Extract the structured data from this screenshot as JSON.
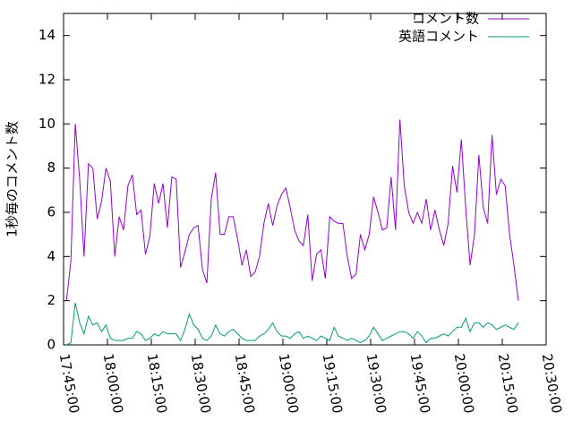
{
  "chart_data": {
    "type": "line",
    "ylabel": "1秒毎のコメント数",
    "x": [
      "17:46:00",
      "17:47:30",
      "17:49:00",
      "17:50:30",
      "17:52:00",
      "17:53:30",
      "17:55:00",
      "17:56:30",
      "17:58:00",
      "17:59:30",
      "18:01:00",
      "18:02:30",
      "18:04:00",
      "18:05:30",
      "18:07:00",
      "18:08:30",
      "18:10:00",
      "18:11:30",
      "18:13:00",
      "18:14:30",
      "18:16:00",
      "18:17:30",
      "18:19:00",
      "18:20:30",
      "18:22:00",
      "18:23:30",
      "18:25:00",
      "18:26:30",
      "18:28:00",
      "18:29:30",
      "18:31:00",
      "18:32:30",
      "18:34:00",
      "18:35:30",
      "18:37:00",
      "18:38:30",
      "18:40:00",
      "18:41:30",
      "18:43:00",
      "18:44:30",
      "18:46:00",
      "18:47:30",
      "18:49:00",
      "18:50:30",
      "18:52:00",
      "18:53:30",
      "18:55:00",
      "18:56:30",
      "18:58:00",
      "18:59:30",
      "19:01:00",
      "19:02:30",
      "19:04:00",
      "19:05:30",
      "19:07:00",
      "19:08:30",
      "19:10:00",
      "19:11:30",
      "19:13:00",
      "19:14:30",
      "19:16:00",
      "19:17:30",
      "19:19:00",
      "19:20:30",
      "19:22:00",
      "19:23:30",
      "19:25:00",
      "19:26:30",
      "19:28:00",
      "19:29:30",
      "19:31:00",
      "19:32:30",
      "19:34:00",
      "19:35:30",
      "19:37:00",
      "19:38:30",
      "19:40:00",
      "19:41:30",
      "19:43:00",
      "19:44:30",
      "19:46:00",
      "19:47:30",
      "19:49:00",
      "19:50:30",
      "19:52:00",
      "19:53:30",
      "19:55:00",
      "19:56:30",
      "19:58:00",
      "19:59:30",
      "20:01:00",
      "20:02:30",
      "20:04:00",
      "20:05:30",
      "20:07:00",
      "20:08:30",
      "20:10:00",
      "20:11:30",
      "20:13:00",
      "20:14:30",
      "20:16:00",
      "20:17:30",
      "20:19:00",
      "20:20:30"
    ],
    "series": [
      {
        "name": "コメント数",
        "color": "#9400d3",
        "values": [
          2.0,
          3.8,
          10.0,
          7.5,
          4.0,
          8.2,
          8.0,
          5.7,
          6.5,
          8.0,
          7.4,
          4.0,
          5.8,
          5.2,
          7.2,
          7.7,
          5.9,
          6.1,
          4.1,
          4.9,
          7.3,
          6.4,
          7.3,
          5.3,
          7.6,
          7.5,
          3.5,
          4.2,
          5.0,
          5.3,
          5.4,
          3.4,
          2.8,
          6.6,
          7.8,
          5.0,
          5.0,
          5.8,
          5.8,
          4.8,
          3.6,
          4.3,
          3.1,
          3.3,
          4.0,
          5.5,
          6.4,
          5.4,
          6.3,
          6.8,
          7.1,
          6.2,
          5.2,
          4.7,
          4.5,
          5.9,
          2.9,
          4.1,
          4.3,
          3.0,
          5.8,
          5.6,
          5.5,
          5.5,
          4.0,
          3.0,
          3.2,
          5.0,
          4.3,
          5.0,
          6.7,
          6.0,
          5.2,
          5.3,
          7.6,
          5.2,
          10.2,
          7.2,
          6.0,
          5.5,
          6.0,
          5.5,
          6.6,
          5.2,
          6.1,
          5.2,
          4.5,
          5.5,
          8.1,
          6.9,
          9.3,
          6.2,
          3.6,
          5.0,
          8.6,
          6.2,
          5.5,
          9.5,
          6.8,
          7.5,
          7.2,
          5.0,
          3.6,
          2.0
        ]
      },
      {
        "name": "英語コメント",
        "color": "#009e73",
        "values": [
          0,
          0.1,
          1.9,
          1.0,
          0.5,
          1.3,
          0.9,
          1.0,
          0.6,
          0.9,
          0.3,
          0.2,
          0.2,
          0.2,
          0.3,
          0.3,
          0.6,
          0.5,
          0.2,
          0.3,
          0.5,
          0.4,
          0.6,
          0.5,
          0.5,
          0.5,
          0.2,
          0.7,
          1.4,
          0.9,
          0.7,
          0.3,
          0.2,
          0.4,
          0.9,
          0.5,
          0.4,
          0.6,
          0.7,
          0.5,
          0.3,
          0.2,
          0.2,
          0.2,
          0.4,
          0.5,
          0.7,
          1.0,
          0.6,
          0.4,
          0.4,
          0.3,
          0.5,
          0.6,
          0.3,
          0.4,
          0.3,
          0.2,
          0.4,
          0.3,
          0.2,
          0.8,
          0.4,
          0.3,
          0.2,
          0.3,
          0.2,
          0.1,
          0.2,
          0.4,
          0.8,
          0.5,
          0.2,
          0.3,
          0.4,
          0.5,
          0.6,
          0.6,
          0.5,
          0.3,
          0.6,
          0.4,
          0.1,
          0.3,
          0.3,
          0.4,
          0.5,
          0.4,
          0.6,
          0.8,
          0.8,
          1.2,
          0.6,
          1.0,
          1.0,
          0.8,
          1.0,
          0.9,
          0.7,
          0.8,
          0.9,
          0.8,
          0.7,
          1.0
        ]
      }
    ],
    "xlim": [
      "17:45:00",
      "20:30:00"
    ],
    "xticks": [
      "17:45:00",
      "18:00:00",
      "18:15:00",
      "18:30:00",
      "18:45:00",
      "19:00:00",
      "19:15:00",
      "19:30:00",
      "19:45:00",
      "20:00:00",
      "20:15:00",
      "20:30:00"
    ],
    "ylim": [
      0,
      15
    ],
    "yticks": [
      0,
      2,
      4,
      6,
      8,
      10,
      12,
      14
    ],
    "legend": "top-right"
  }
}
